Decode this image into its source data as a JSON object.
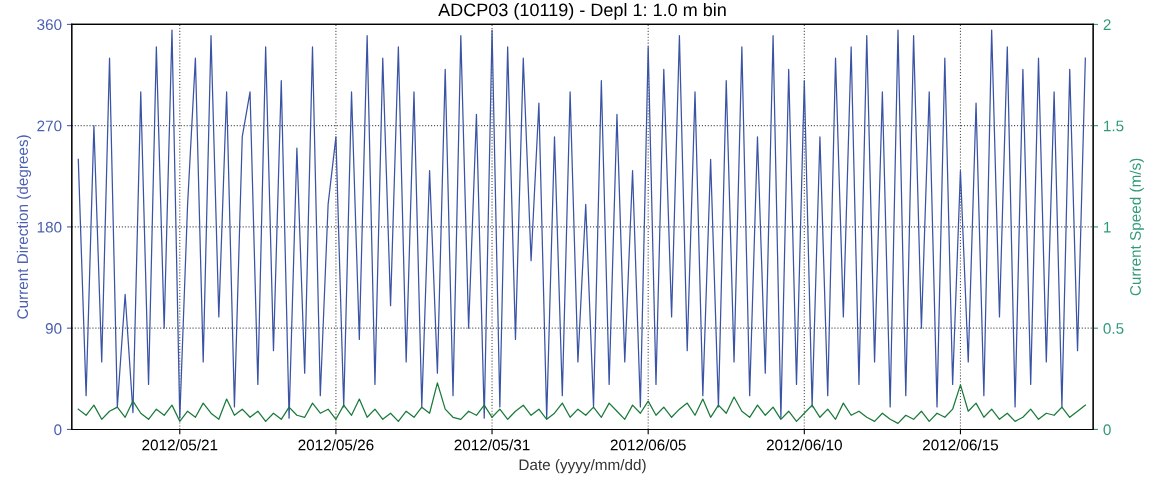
{
  "chart_data": {
    "type": "line",
    "title": "ADCP03 (10119) - Depl 1: 1.0 m bin",
    "xlabel": "Date (yyyy/mm/dd)",
    "ylabel": "Current Direction (degrees)",
    "y2label": "Current Speed (m/s)",
    "x": [
      "2012-05-17T18:00",
      "2012-05-18T00:00",
      "2012-05-18T06:00",
      "2012-05-18T12:00",
      "2012-05-18T18:00",
      "2012-05-19T00:00",
      "2012-05-19T06:00",
      "2012-05-19T12:00",
      "2012-05-19T18:00",
      "2012-05-20T00:00",
      "2012-05-20T06:00",
      "2012-05-20T12:00",
      "2012-05-20T18:00",
      "2012-05-21T00:00",
      "2012-05-21T06:00",
      "2012-05-21T12:00",
      "2012-05-21T18:00",
      "2012-05-22T00:00",
      "2012-05-22T06:00",
      "2012-05-22T12:00",
      "2012-05-22T18:00",
      "2012-05-23T00:00",
      "2012-05-23T06:00",
      "2012-05-23T12:00",
      "2012-05-23T18:00",
      "2012-05-24T00:00",
      "2012-05-24T06:00",
      "2012-05-24T12:00",
      "2012-05-24T18:00",
      "2012-05-25T00:00",
      "2012-05-25T06:00",
      "2012-05-25T12:00",
      "2012-05-25T18:00",
      "2012-05-26T00:00",
      "2012-05-26T06:00",
      "2012-05-26T12:00",
      "2012-05-26T18:00",
      "2012-05-27T00:00",
      "2012-05-27T06:00",
      "2012-05-27T12:00",
      "2012-05-27T18:00",
      "2012-05-28T00:00",
      "2012-05-28T06:00",
      "2012-05-28T12:00",
      "2012-05-28T18:00",
      "2012-05-29T00:00",
      "2012-05-29T06:00",
      "2012-05-29T12:00",
      "2012-05-29T18:00",
      "2012-05-30T00:00",
      "2012-05-30T06:00",
      "2012-05-30T12:00",
      "2012-05-30T18:00",
      "2012-05-31T00:00",
      "2012-05-31T06:00",
      "2012-05-31T12:00",
      "2012-05-31T18:00",
      "2012-06-01T00:00",
      "2012-06-01T06:00",
      "2012-06-01T12:00",
      "2012-06-01T18:00",
      "2012-06-02T00:00",
      "2012-06-02T06:00",
      "2012-06-02T12:00",
      "2012-06-02T18:00",
      "2012-06-03T00:00",
      "2012-06-03T06:00",
      "2012-06-03T12:00",
      "2012-06-03T18:00",
      "2012-06-04T00:00",
      "2012-06-04T06:00",
      "2012-06-04T12:00",
      "2012-06-04T18:00",
      "2012-06-05T00:00",
      "2012-06-05T06:00",
      "2012-06-05T12:00",
      "2012-06-05T18:00",
      "2012-06-06T00:00",
      "2012-06-06T06:00",
      "2012-06-06T12:00",
      "2012-06-06T18:00",
      "2012-06-07T00:00",
      "2012-06-07T06:00",
      "2012-06-07T12:00",
      "2012-06-07T18:00",
      "2012-06-08T00:00",
      "2012-06-08T06:00",
      "2012-06-08T12:00",
      "2012-06-08T18:00",
      "2012-06-09T00:00",
      "2012-06-09T06:00",
      "2012-06-09T12:00",
      "2012-06-09T18:00",
      "2012-06-10T00:00",
      "2012-06-10T06:00",
      "2012-06-10T12:00",
      "2012-06-10T18:00",
      "2012-06-11T00:00",
      "2012-06-11T06:00",
      "2012-06-11T12:00",
      "2012-06-11T18:00",
      "2012-06-12T00:00",
      "2012-06-12T06:00",
      "2012-06-12T12:00",
      "2012-06-12T18:00",
      "2012-06-13T00:00",
      "2012-06-13T06:00",
      "2012-06-13T12:00",
      "2012-06-13T18:00",
      "2012-06-14T00:00",
      "2012-06-14T06:00",
      "2012-06-14T12:00",
      "2012-06-14T18:00",
      "2012-06-15T00:00",
      "2012-06-15T06:00",
      "2012-06-15T12:00",
      "2012-06-15T18:00",
      "2012-06-16T00:00",
      "2012-06-16T06:00",
      "2012-06-16T12:00",
      "2012-06-16T18:00",
      "2012-06-17T00:00",
      "2012-06-17T06:00",
      "2012-06-17T12:00",
      "2012-06-17T18:00",
      "2012-06-18T00:00",
      "2012-06-18T06:00",
      "2012-06-18T12:00",
      "2012-06-18T18:00",
      "2012-06-19T00:00"
    ],
    "series": [
      {
        "color": "#3a53a4",
        "values": [
          240,
          30,
          270,
          60,
          330,
          20,
          120,
          15,
          300,
          40,
          340,
          90,
          355,
          10,
          200,
          330,
          60,
          350,
          100,
          300,
          20,
          260,
          300,
          40,
          340,
          70,
          310,
          10,
          250,
          50,
          340,
          30,
          200,
          260,
          20,
          300,
          80,
          350,
          40,
          330,
          110,
          340,
          60,
          300,
          20,
          230,
          50,
          320,
          30,
          350,
          90,
          280,
          10,
          355,
          20,
          340,
          80,
          330,
          150,
          290,
          10,
          260,
          30,
          300,
          60,
          200,
          20,
          310,
          40,
          280,
          60,
          230,
          20,
          340,
          40,
          320,
          100,
          350,
          70,
          300,
          30,
          240,
          20,
          310,
          60,
          340,
          30,
          260,
          50,
          350,
          10,
          320,
          40,
          310,
          20,
          260,
          30,
          330,
          100,
          340,
          40,
          350,
          60,
          300,
          20,
          355,
          30,
          350,
          90,
          300,
          20,
          330,
          40,
          230,
          60,
          290,
          30,
          355,
          100,
          340,
          20,
          320,
          40,
          330,
          60,
          300,
          20,
          320,
          70,
          330
        ]
      },
      {
        "color": "#1a7a3a",
        "axis": "y2",
        "values": [
          0.1,
          0.07,
          0.12,
          0.05,
          0.09,
          0.11,
          0.06,
          0.14,
          0.08,
          0.05,
          0.1,
          0.07,
          0.12,
          0.04,
          0.09,
          0.06,
          0.13,
          0.08,
          0.05,
          0.15,
          0.07,
          0.1,
          0.06,
          0.09,
          0.04,
          0.08,
          0.05,
          0.11,
          0.07,
          0.06,
          0.13,
          0.08,
          0.1,
          0.05,
          0.12,
          0.07,
          0.15,
          0.06,
          0.1,
          0.05,
          0.08,
          0.04,
          0.09,
          0.06,
          0.11,
          0.08,
          0.23,
          0.1,
          0.06,
          0.05,
          0.09,
          0.07,
          0.12,
          0.06,
          0.1,
          0.05,
          0.09,
          0.12,
          0.07,
          0.1,
          0.05,
          0.08,
          0.13,
          0.06,
          0.1,
          0.07,
          0.11,
          0.06,
          0.13,
          0.09,
          0.05,
          0.12,
          0.08,
          0.14,
          0.07,
          0.11,
          0.06,
          0.1,
          0.13,
          0.07,
          0.15,
          0.06,
          0.12,
          0.08,
          0.16,
          0.09,
          0.06,
          0.12,
          0.07,
          0.11,
          0.05,
          0.09,
          0.04,
          0.08,
          0.12,
          0.06,
          0.1,
          0.05,
          0.13,
          0.07,
          0.09,
          0.06,
          0.04,
          0.08,
          0.05,
          0.03,
          0.07,
          0.05,
          0.09,
          0.04,
          0.08,
          0.06,
          0.1,
          0.22,
          0.09,
          0.13,
          0.06,
          0.1,
          0.05,
          0.08,
          0.04,
          0.06,
          0.1,
          0.05,
          0.08,
          0.07,
          0.11,
          0.06,
          0.09,
          0.12
        ]
      }
    ],
    "xlim": [
      "2012-05-17T13:00",
      "2012-06-19T06:00"
    ],
    "xticks": [
      {
        "value": "2012-05-21",
        "label": "2012/05/21"
      },
      {
        "value": "2012-05-26",
        "label": "2012/05/26"
      },
      {
        "value": "2012-05-31",
        "label": "2012/05/31"
      },
      {
        "value": "2012-06-05",
        "label": "2012/06/05"
      },
      {
        "value": "2012-06-10",
        "label": "2012/06/10"
      },
      {
        "value": "2012-06-15",
        "label": "2012/06/15"
      }
    ],
    "ylim": [
      0,
      360
    ],
    "yticks": [
      0,
      90,
      180,
      270,
      360
    ],
    "y2lim": [
      0,
      2
    ],
    "y2ticks": [
      0,
      0.5,
      1,
      1.5,
      2
    ],
    "grid": true,
    "line_style": "solid",
    "marker": "none"
  }
}
